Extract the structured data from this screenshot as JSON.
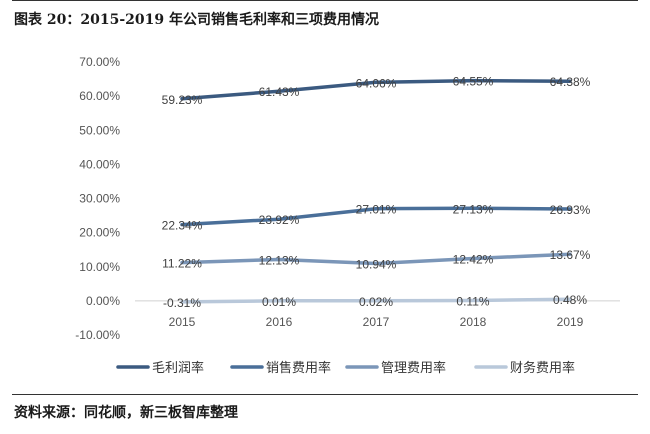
{
  "figure_title": "图表 20：2015-2019 年公司销售毛利率和三项费用情况",
  "source_note": "资料来源：同花顺，新三板智库整理",
  "chart_data": {
    "type": "line",
    "title": "",
    "xlabel": "",
    "ylabel": "",
    "categories": [
      "2015",
      "2016",
      "2017",
      "2018",
      "2019"
    ],
    "ylim": [
      -10,
      70
    ],
    "yticks": [
      "-10.00%",
      "0.00%",
      "10.00%",
      "20.00%",
      "30.00%",
      "40.00%",
      "50.00%",
      "60.00%",
      "70.00%"
    ],
    "grid": false,
    "legend_position": "bottom",
    "series": [
      {
        "name": "毛利润率",
        "color": "#3b5a80",
        "values": [
          59.23,
          61.43,
          64.06,
          64.55,
          64.38
        ],
        "labels": [
          "59.23%",
          "61.43%",
          "64.06%",
          "64.55%",
          "64.38%"
        ]
      },
      {
        "name": "销售费用率",
        "color": "#4a6f99",
        "values": [
          22.34,
          23.92,
          27.01,
          27.13,
          26.93
        ],
        "labels": [
          "22.34%",
          "23.92%",
          "27.01%",
          "27.13%",
          "26.93%"
        ]
      },
      {
        "name": "管理费用率",
        "color": "#7b96b8",
        "values": [
          11.22,
          12.13,
          10.94,
          12.42,
          13.67
        ],
        "labels": [
          "11.22%",
          "12.13%",
          "10.94%",
          "12.42%",
          "13.67%"
        ]
      },
      {
        "name": "财务费用率",
        "color": "#b9c8da",
        "values": [
          -0.31,
          0.01,
          0.02,
          0.11,
          0.48
        ],
        "labels": [
          "-0.31%",
          "0.01%",
          "0.02%",
          "0.11%",
          "0.48%"
        ]
      }
    ]
  }
}
